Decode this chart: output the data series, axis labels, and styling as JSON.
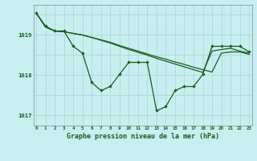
{
  "title": "Graphe pression niveau de la mer (hPa)",
  "background_color": "#c8eef0",
  "plot_bg_color": "#c8eef0",
  "grid_color": "#b0d8d8",
  "line_color": "#1a5e1a",
  "label_color": "#1a5e1a",
  "hours": [
    0,
    1,
    2,
    3,
    4,
    5,
    6,
    7,
    8,
    9,
    10,
    11,
    12,
    13,
    14,
    15,
    16,
    17,
    18,
    19,
    20,
    21,
    22,
    23
  ],
  "series1": [
    1019.55,
    1019.22,
    1019.1,
    1019.1,
    1018.72,
    1018.55,
    1017.82,
    1017.62,
    1017.72,
    1018.02,
    1018.32,
    1018.32,
    1018.32,
    1017.12,
    1017.22,
    1017.62,
    1017.72,
    1017.72,
    1018.02,
    1018.72,
    1018.72,
    1018.72,
    1018.72,
    1018.58
  ],
  "series2": [
    1019.55,
    1019.2,
    1019.1,
    1019.08,
    1019.04,
    1019.0,
    1018.94,
    1018.88,
    1018.82,
    1018.74,
    1018.67,
    1018.6,
    1018.53,
    1018.46,
    1018.4,
    1018.33,
    1018.27,
    1018.2,
    1018.14,
    1018.08,
    1018.55,
    1018.58,
    1018.58,
    1018.52
  ],
  "series3": [
    1019.55,
    1019.2,
    1019.1,
    1019.08,
    1019.04,
    1019.0,
    1018.94,
    1018.87,
    1018.8,
    1018.72,
    1018.64,
    1018.57,
    1018.5,
    1018.42,
    1018.35,
    1018.28,
    1018.21,
    1018.14,
    1018.07,
    1018.6,
    1018.64,
    1018.67,
    1018.6,
    1018.55
  ],
  "ylim": [
    1016.75,
    1019.75
  ],
  "yticks": [
    1017,
    1018,
    1019
  ],
  "xticks": [
    0,
    1,
    2,
    3,
    4,
    5,
    6,
    7,
    8,
    9,
    10,
    11,
    12,
    13,
    14,
    15,
    16,
    17,
    18,
    19,
    20,
    21,
    22,
    23
  ]
}
